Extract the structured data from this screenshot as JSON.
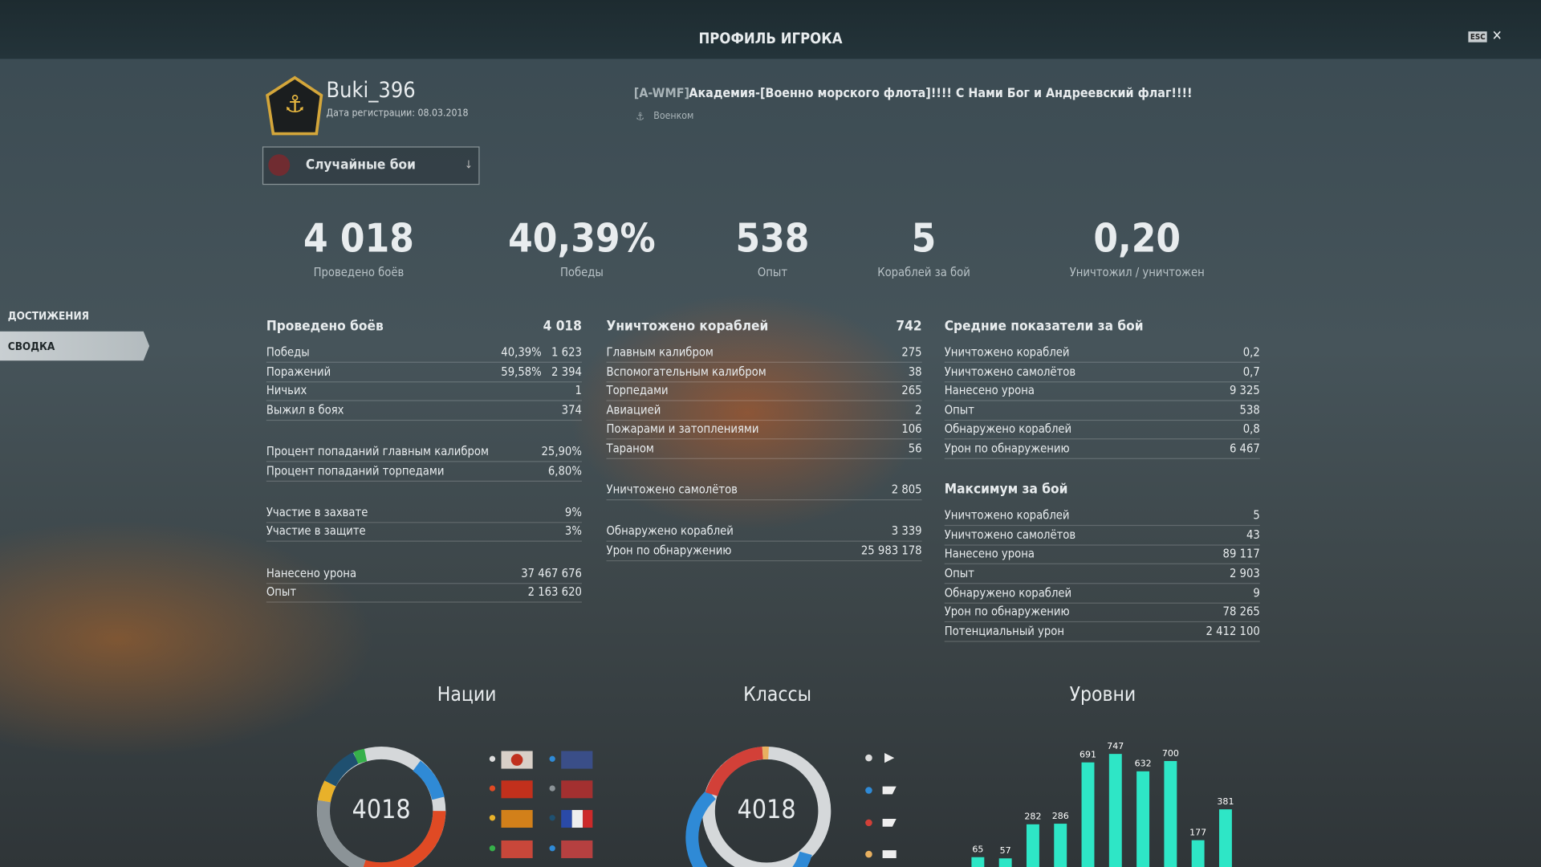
{
  "header": {
    "title": "ПРОФИЛЬ ИГРОКА",
    "esc": "ESC"
  },
  "player": {
    "name": "Buki_396",
    "registration": "Дата регистрации: 08.03.2018",
    "clan_tag": "[A-WMF]",
    "clan_name": "Академия-[Военно морского флота]!!!! С Нами Бог и Андреевский флаг!!!!",
    "clan_role": "Военком"
  },
  "mode_select": "Случайные бои",
  "sidebar": [
    "ДОСТИЖЕНИЯ",
    "СВОДКА"
  ],
  "summary": [
    {
      "value": "4 018",
      "label": "Проведено боёв"
    },
    {
      "value": "40,39%",
      "label": "Победы"
    },
    {
      "value": "538",
      "label": "Опыт"
    },
    {
      "value": "5",
      "label": "Кораблей за бой"
    },
    {
      "value": "0,20",
      "label": "Уничтожил / уничтожен"
    }
  ],
  "columns": [
    {
      "sections": [
        {
          "title": "Проведено боёв",
          "value": "4 018",
          "rows": [
            {
              "label": "Победы",
              "pct": "40,39%",
              "value": "1 623"
            },
            {
              "label": "Поражений",
              "pct": "59,58%",
              "value": "2 394"
            },
            {
              "label": "Ничьих",
              "value": "1"
            },
            {
              "label": "Выжил в боях",
              "value": "374"
            }
          ]
        },
        {
          "rows": [
            {
              "label": "Процент попаданий главным калибром",
              "value": "25,90%"
            },
            {
              "label": "Процент попаданий торпедами",
              "value": "6,80%"
            }
          ]
        },
        {
          "rows": [
            {
              "label": "Участие в захвате",
              "value": "9%"
            },
            {
              "label": "Участие в защите",
              "value": "3%"
            }
          ]
        },
        {
          "rows": [
            {
              "label": "Нанесено урона",
              "value": "37 467 676"
            },
            {
              "label": "Опыт",
              "value": "2 163 620"
            }
          ]
        }
      ]
    },
    {
      "sections": [
        {
          "title": "Уничтожено кораблей",
          "value": "742",
          "rows": [
            {
              "label": "Главным калибром",
              "value": "275"
            },
            {
              "label": "Вспомогательным калибром",
              "value": "38"
            },
            {
              "label": "Торпедами",
              "value": "265"
            },
            {
              "label": "Авиацией",
              "value": "2"
            },
            {
              "label": "Пожарами и затоплениями",
              "value": "106"
            },
            {
              "label": "Тараном",
              "value": "56"
            }
          ]
        },
        {
          "rows": [
            {
              "label": "Уничтожено самолётов",
              "value": "2 805"
            }
          ]
        },
        {
          "rows": [
            {
              "label": "Обнаружено кораблей",
              "value": "3 339"
            },
            {
              "label": "Урон по обнаружению",
              "value": "25 983 178"
            }
          ]
        }
      ]
    },
    {
      "sections": [
        {
          "title": "Средние показатели за бой",
          "rows": [
            {
              "label": "Уничтожено кораблей",
              "value": "0,2"
            },
            {
              "label": "Уничтожено самолётов",
              "value": "0,7"
            },
            {
              "label": "Нанесено урона",
              "value": "9 325"
            },
            {
              "label": "Опыт",
              "value": "538"
            },
            {
              "label": "Обнаружено кораблей",
              "value": "0,8"
            },
            {
              "label": "Урон по обнаружению",
              "value": "6 467"
            }
          ]
        },
        {
          "title": "Максимум за бой",
          "rows": [
            {
              "label": "Уничтожено кораблей",
              "value": "5"
            },
            {
              "label": "Уничтожено самолётов",
              "value": "43"
            },
            {
              "label": "Нанесено урона",
              "value": "89 117"
            },
            {
              "label": "Опыт",
              "value": "2 903"
            },
            {
              "label": "Обнаружено кораблей",
              "value": "9"
            },
            {
              "label": "Урон по обнаружению",
              "value": "78 265"
            },
            {
              "label": "Потенциальный урон",
              "value": "2 412 100"
            }
          ]
        }
      ]
    }
  ],
  "nations": {
    "title": "Нации",
    "total": "4018"
  },
  "classes": {
    "title": "Классы",
    "total": "4018"
  },
  "levels": {
    "title": "Уровни",
    "values": [
      65,
      57,
      282,
      286,
      691,
      747,
      632,
      700,
      177,
      381
    ]
  }
}
